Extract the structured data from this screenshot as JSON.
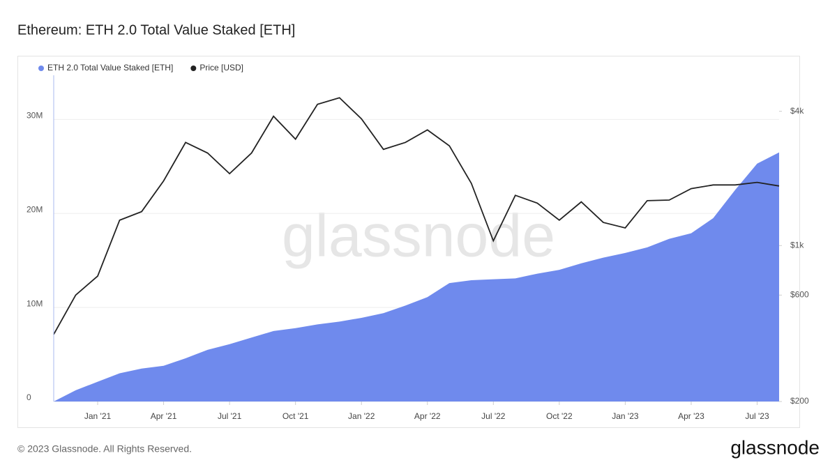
{
  "chart_data": {
    "type": "area-line",
    "title": "Ethereum: ETH 2.0 Total Value Staked [ETH]",
    "watermark": "glassnode",
    "footer": "© 2023 Glassnode. All Rights Reserved.",
    "brand": "glassnode",
    "x": [
      "2020-11",
      "2020-12",
      "2021-01",
      "2021-02",
      "2021-03",
      "2021-04",
      "2021-05",
      "2021-06",
      "2021-07",
      "2021-08",
      "2021-09",
      "2021-10",
      "2021-11",
      "2021-12",
      "2022-01",
      "2022-02",
      "2022-03",
      "2022-04",
      "2022-05",
      "2022-06",
      "2022-07",
      "2022-08",
      "2022-09",
      "2022-10",
      "2022-11",
      "2022-12",
      "2023-01",
      "2023-02",
      "2023-03",
      "2023-04",
      "2023-05",
      "2023-06",
      "2023-07",
      "2023-08"
    ],
    "series": [
      {
        "name": "ETH 2.0 Total Value Staked [ETH]",
        "color": "#6f8aed",
        "axis": "y",
        "values": [
          0,
          1200000,
          2100000,
          3000000,
          3500000,
          3800000,
          4600000,
          5500000,
          6100000,
          6800000,
          7500000,
          7800000,
          8200000,
          8500000,
          8900000,
          9400000,
          10200000,
          11100000,
          12600000,
          12900000,
          13000000,
          13100000,
          13600000,
          14000000,
          14700000,
          15300000,
          15800000,
          16400000,
          17300000,
          17900000,
          19500000,
          22500000,
          25300000,
          26500000
        ]
      },
      {
        "name": "Price [USD]",
        "color": "#222222",
        "axis": "y2",
        "values": [
          400,
          600,
          730,
          1300,
          1420,
          1950,
          2900,
          2600,
          2100,
          2600,
          3800,
          3000,
          4300,
          4600,
          3700,
          2700,
          2900,
          3300,
          2800,
          1900,
          1050,
          1680,
          1550,
          1300,
          1570,
          1270,
          1200,
          1590,
          1600,
          1800,
          1870,
          1870,
          1920,
          1850
        ]
      }
    ],
    "xlim": [
      "2020-11",
      "2023-08"
    ],
    "xticks": [
      {
        "value": "2021-01",
        "label": "Jan '21"
      },
      {
        "value": "2021-04",
        "label": "Apr '21"
      },
      {
        "value": "2021-07",
        "label": "Jul '21"
      },
      {
        "value": "2021-10",
        "label": "Oct '21"
      },
      {
        "value": "2022-01",
        "label": "Jan '22"
      },
      {
        "value": "2022-04",
        "label": "Apr '22"
      },
      {
        "value": "2022-07",
        "label": "Jul '22"
      },
      {
        "value": "2022-10",
        "label": "Oct '22"
      },
      {
        "value": "2023-01",
        "label": "Jan '23"
      },
      {
        "value": "2023-04",
        "label": "Apr '23"
      },
      {
        "value": "2023-07",
        "label": "Jul '23"
      }
    ],
    "ylim": [
      0,
      34700000
    ],
    "yticks": [
      0,
      {
        "value": 10000000,
        "label": "10M"
      },
      {
        "value": 20000000,
        "label": "20M"
      },
      {
        "value": 30000000,
        "label": "30M"
      }
    ],
    "y2lim": [
      200,
      5800
    ],
    "y2log": true,
    "y2ticks": [
      {
        "value": 200,
        "label": "$200"
      },
      {
        "value": 600,
        "label": "$600"
      },
      {
        "value": 1000,
        "label": "$1k"
      },
      {
        "value": 4000,
        "label": "$4k"
      }
    ],
    "grid": true
  }
}
